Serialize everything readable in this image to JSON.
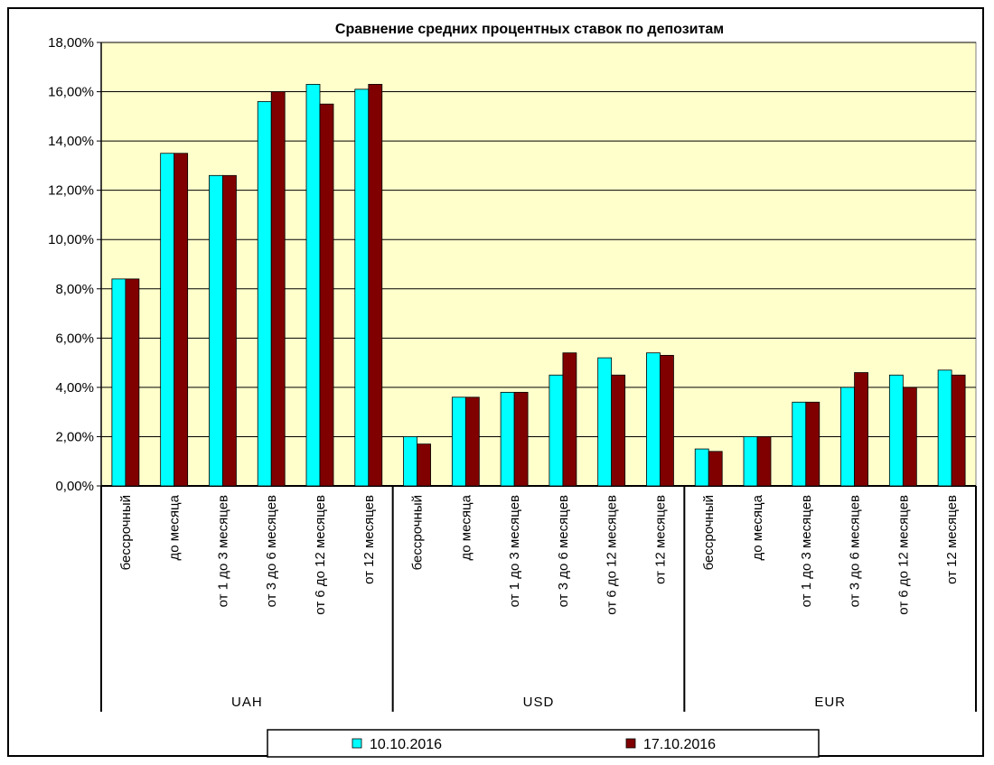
{
  "chart_data": {
    "type": "bar",
    "title": "Сравнение средних процентных ставок по депозитам",
    "xlabel": "",
    "ylabel": "",
    "ylim": [
      0,
      18
    ],
    "y_ticks": [
      "0,00%",
      "2,00%",
      "4,00%",
      "6,00%",
      "8,00%",
      "10,00%",
      "12,00%",
      "14,00%",
      "16,00%",
      "18,00%"
    ],
    "grid": true,
    "legend_position": "bottom",
    "groups": [
      "UAH",
      "USD",
      "EUR"
    ],
    "categories": [
      "бессрочный",
      "до месяца",
      "от 1 до 3 месяцев",
      "от 3 до 6 месяцев",
      "от 6 до 12 месяцев",
      "от 12 месяцев"
    ],
    "series": [
      {
        "name": "10.10.2016",
        "color": "#00ffff",
        "values": [
          [
            8.4,
            13.5,
            12.6,
            15.6,
            16.3,
            16.1
          ],
          [
            2.0,
            3.6,
            3.8,
            4.5,
            5.2,
            5.4
          ],
          [
            1.5,
            2.0,
            3.4,
            4.0,
            4.5,
            4.7
          ]
        ]
      },
      {
        "name": "17.10.2016",
        "color": "#800000",
        "values": [
          [
            8.4,
            13.5,
            12.6,
            16.0,
            15.5,
            16.3
          ],
          [
            1.7,
            3.6,
            3.8,
            5.4,
            4.5,
            5.3
          ],
          [
            1.4,
            2.0,
            3.4,
            4.6,
            4.0,
            4.5
          ]
        ]
      }
    ],
    "plot_background": "#ffffcc"
  }
}
